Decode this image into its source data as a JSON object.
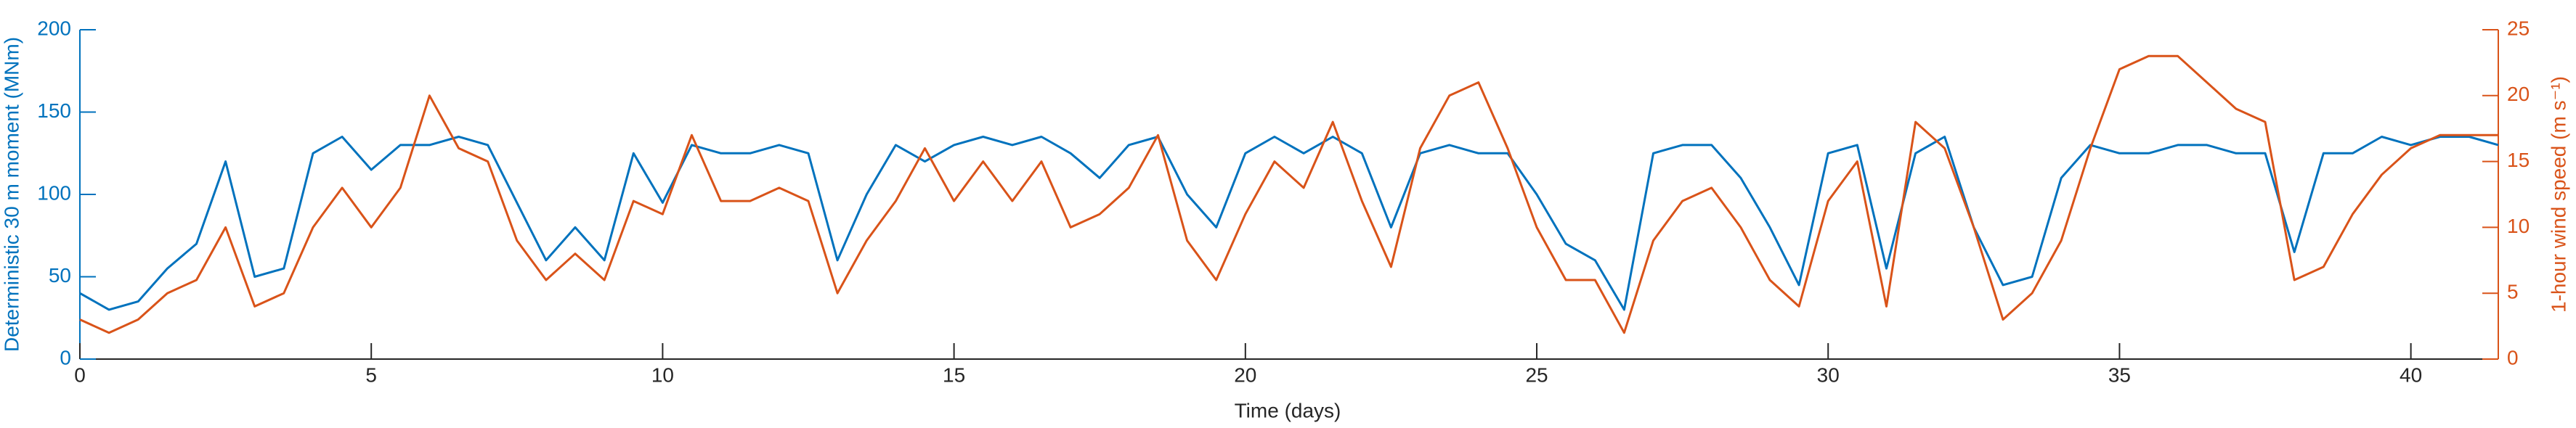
{
  "chart_data": {
    "type": "line",
    "x_label": "Time (days)",
    "y_label": "Deterministic 30 m moment (MNm)",
    "y2_label": "1-hour wind speed (m s⁻¹)",
    "x": [
      0,
      0.5,
      1,
      1.5,
      2,
      2.5,
      3,
      3.5,
      4,
      4.5,
      5,
      5.5,
      6,
      6.5,
      7,
      7.5,
      8,
      8.5,
      9,
      9.5,
      10,
      10.5,
      11,
      11.5,
      12,
      12.5,
      13,
      13.5,
      14,
      14.5,
      15,
      15.5,
      16,
      16.5,
      17,
      17.5,
      18,
      18.5,
      19,
      19.5,
      20,
      20.5,
      21,
      21.5,
      22,
      22.5,
      23,
      23.5,
      24,
      24.5,
      25,
      25.5,
      26,
      26.5,
      27,
      27.5,
      28,
      28.5,
      29,
      29.5,
      30,
      30.5,
      31,
      31.5,
      32,
      32.5,
      33,
      33.5,
      34,
      34.5,
      35,
      35.5,
      36,
      36.5,
      37,
      37.5,
      38,
      38.5,
      39,
      39.5,
      40,
      40.5,
      41,
      41.5
    ],
    "series": [
      {
        "name": "Deterministic 30 m moment",
        "color": "#0072BD",
        "axis": "y",
        "values": [
          40,
          30,
          35,
          55,
          70,
          120,
          50,
          55,
          125,
          135,
          115,
          130,
          130,
          135,
          130,
          95,
          60,
          80,
          60,
          125,
          95,
          130,
          125,
          125,
          130,
          125,
          60,
          100,
          130,
          120,
          130,
          135,
          130,
          135,
          125,
          110,
          130,
          135,
          100,
          80,
          125,
          135,
          125,
          135,
          125,
          80,
          125,
          130,
          125,
          125,
          100,
          70,
          60,
          30,
          125,
          130,
          130,
          110,
          80,
          45,
          125,
          130,
          55,
          125,
          135,
          80,
          45,
          50,
          110,
          130,
          125,
          125,
          130,
          130,
          125,
          125,
          65,
          125,
          125,
          135,
          130,
          135,
          135,
          130
        ]
      },
      {
        "name": "1-hour wind speed",
        "color": "#D95319",
        "axis": "y2",
        "values": [
          3,
          2,
          3,
          5,
          6,
          10,
          4,
          5,
          10,
          13,
          10,
          13,
          20,
          16,
          15,
          9,
          6,
          8,
          6,
          12,
          11,
          17,
          12,
          12,
          13,
          12,
          5,
          9,
          12,
          16,
          12,
          15,
          12,
          15,
          10,
          11,
          13,
          17,
          9,
          6,
          11,
          15,
          13,
          18,
          12,
          7,
          16,
          20,
          21,
          16,
          10,
          6,
          6,
          2,
          9,
          12,
          13,
          10,
          6,
          4,
          12,
          15,
          4,
          18,
          16,
          10,
          3,
          5,
          9,
          16,
          22,
          23,
          23,
          21,
          19,
          18,
          6,
          7,
          11,
          14,
          16,
          17,
          17,
          17
        ]
      }
    ],
    "xlim": [
      0,
      41.5
    ],
    "xticks": [
      0,
      5,
      10,
      15,
      20,
      25,
      30,
      35,
      40
    ],
    "ylim": [
      0,
      200
    ],
    "yticks": [
      0,
      50,
      100,
      150,
      200
    ],
    "y2lim": [
      0,
      25
    ],
    "y2ticks": [
      0,
      5,
      10,
      15,
      20,
      25
    ],
    "grid": false
  }
}
